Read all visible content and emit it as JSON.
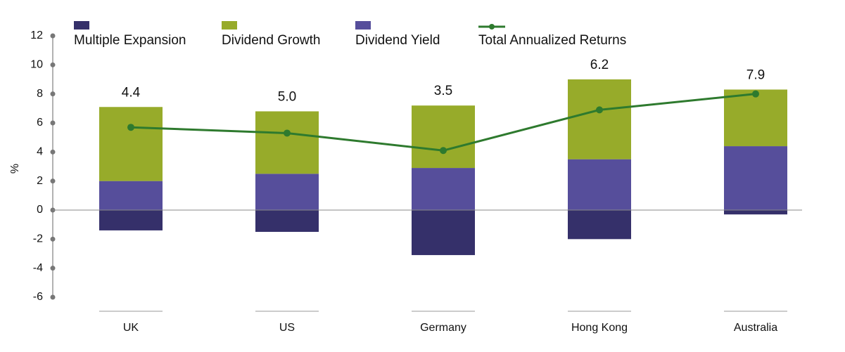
{
  "chart_data": {
    "type": "bar",
    "stacked": true,
    "y_label": "%",
    "categories": [
      "UK",
      "US",
      "Germany",
      "Hong Kong",
      "Australia"
    ],
    "series": [
      {
        "name": "Multiple Expansion",
        "color": "#35306a",
        "values": [
          -1.4,
          -1.5,
          -3.1,
          -2.0,
          -0.3
        ]
      },
      {
        "name": "Dividend Growth",
        "color": "#97ab2a",
        "values": [
          5.1,
          4.3,
          4.3,
          5.5,
          3.9
        ]
      },
      {
        "name": "Dividend Yield",
        "color": "#564e9b",
        "values": [
          2.0,
          2.5,
          2.9,
          3.5,
          4.4
        ]
      },
      {
        "name": "Total Annualized Returns",
        "type": "line",
        "color": "#2e7a2e",
        "values": [
          5.7,
          5.3,
          4.1,
          6.9,
          8.0
        ]
      }
    ],
    "annotations": [
      "4.4",
      "5.0",
      "3.5",
      "6.2",
      "7.9"
    ],
    "ylim": [
      -6,
      12
    ],
    "yticks": [
      -6,
      -4,
      -2,
      0,
      2,
      4,
      6,
      8,
      10,
      12
    ]
  }
}
